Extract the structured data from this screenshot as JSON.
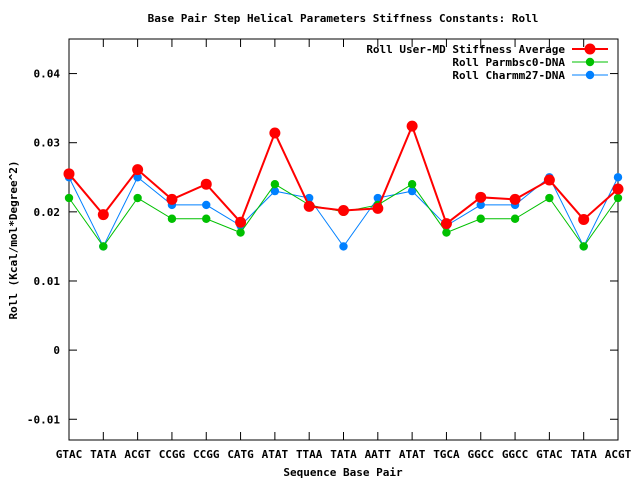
{
  "chart_data": {
    "type": "line",
    "title": "Base Pair Step Helical Parameters Stiffness Constants: Roll",
    "xlabel": "Sequence Base Pair",
    "ylabel": "Roll (Kcal/mol*Degree^2)",
    "categories": [
      "GTAC",
      "TATA",
      "ACGT",
      "CCGG",
      "CCGG",
      "CATG",
      "ATAT",
      "TTAA",
      "TATA",
      "AATT",
      "ATAT",
      "TGCA",
      "GGCC",
      "GGCC",
      "GTAC",
      "TATA",
      "ACGT"
    ],
    "ylim": [
      -0.013,
      0.045
    ],
    "yticks": [
      -0.01,
      0,
      0.01,
      0.02,
      0.03,
      0.04
    ],
    "ytick_labels": [
      "-0.01",
      "0",
      "0.01",
      "0.02",
      "0.03",
      "0.04"
    ],
    "legend_position": "top-right",
    "grid": false,
    "series": [
      {
        "name": "Roll User-MD Stiffness Average",
        "color": "#ff0000",
        "values": [
          0.0255,
          0.0196,
          0.0261,
          0.0218,
          0.024,
          0.0185,
          0.0314,
          0.0208,
          0.0202,
          0.0205,
          0.0324,
          0.0183,
          0.0221,
          0.0218,
          0.0246,
          0.0189,
          0.0233
        ]
      },
      {
        "name": "Roll Parmbsc0-DNA",
        "color": "#00c000",
        "values": [
          0.022,
          0.015,
          0.022,
          0.019,
          0.019,
          0.017,
          0.024,
          0.021,
          0.02,
          0.021,
          0.024,
          0.017,
          0.019,
          0.019,
          0.022,
          0.015,
          0.022
        ]
      },
      {
        "name": "Roll Charmm27-DNA",
        "color": "#0080ff",
        "values": [
          0.025,
          0.015,
          0.025,
          0.021,
          0.021,
          0.018,
          0.023,
          0.022,
          0.015,
          0.022,
          0.023,
          0.018,
          0.021,
          0.021,
          0.025,
          0.015,
          0.025
        ]
      }
    ]
  }
}
